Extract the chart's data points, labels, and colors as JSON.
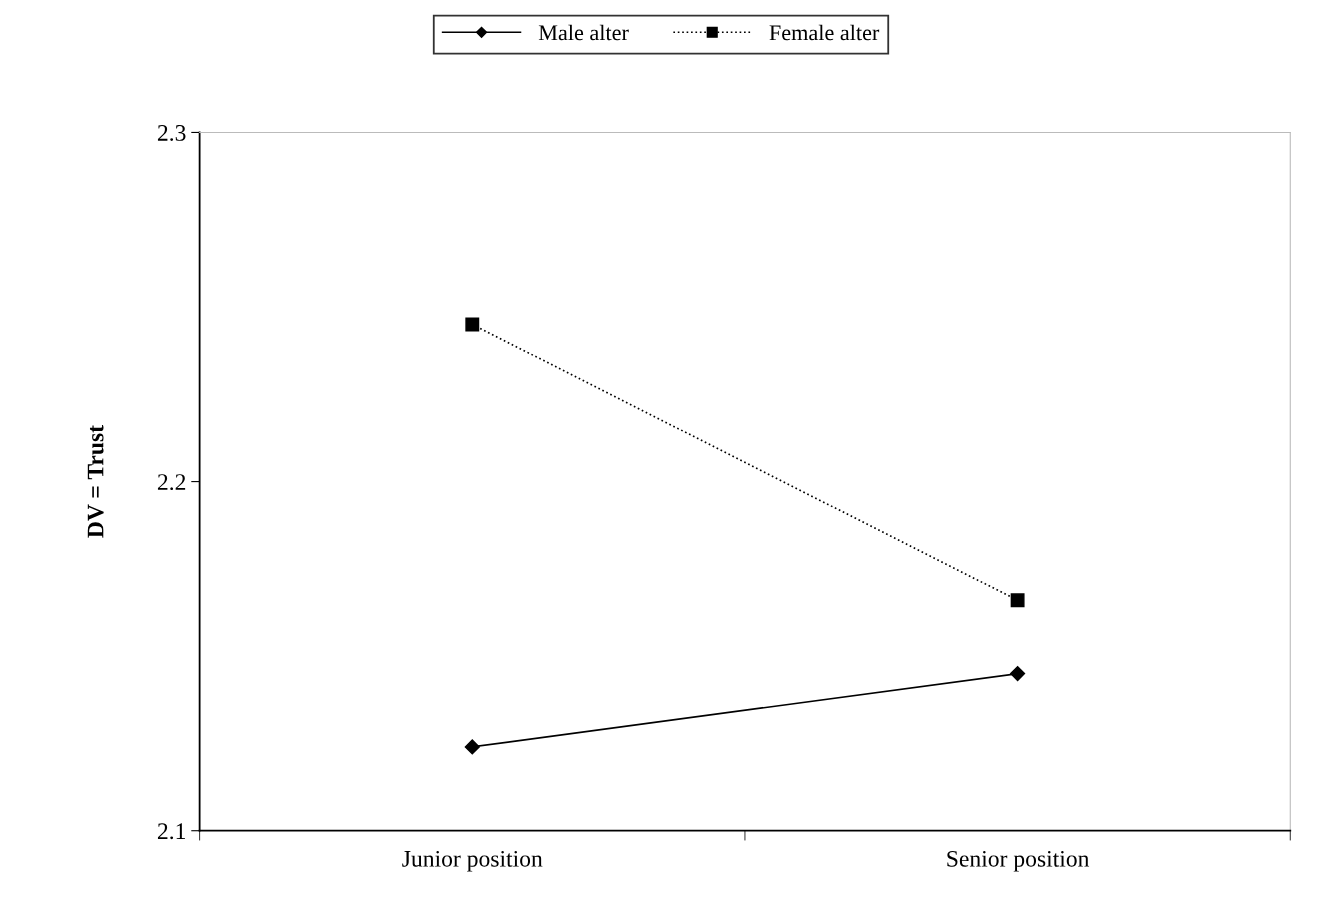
{
  "chart_data": {
    "type": "line",
    "ylabel": "DV = Trust",
    "categories": [
      "Junior position",
      "Senior position"
    ],
    "series": [
      {
        "name": "Male alter",
        "color": "#000000",
        "values": [
          2.124,
          2.145
        ],
        "marker": "diamond",
        "line_style": "solid"
      },
      {
        "name": "Female alter",
        "color": "#000000",
        "values": [
          2.245,
          2.166
        ],
        "marker": "square",
        "line_style": "dotted"
      }
    ],
    "ylim": [
      2.1,
      2.3
    ],
    "yticks": [
      2.1,
      2.2,
      2.3
    ],
    "grid": false,
    "legend": "top"
  }
}
